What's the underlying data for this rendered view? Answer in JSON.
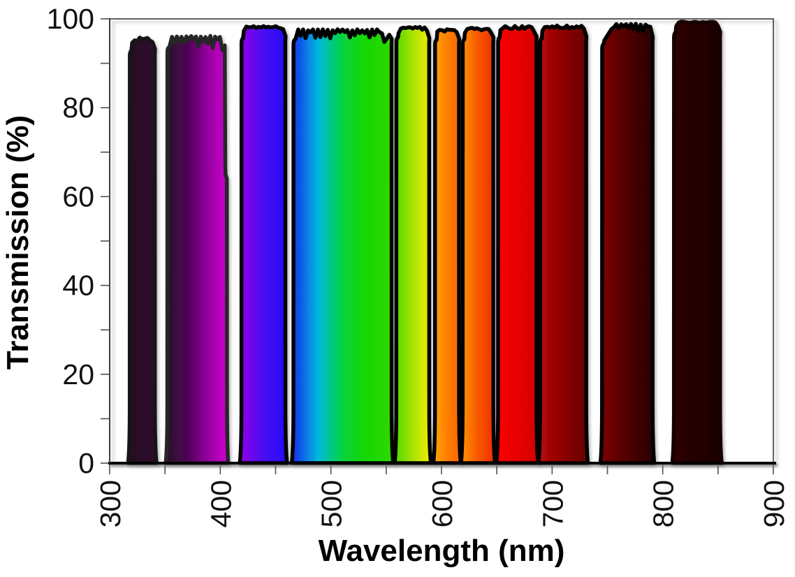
{
  "figure": {
    "background": "#ffffff",
    "description": "Transmission spectra of a set of optical bandpass filters spanning the UV-visible-NIR range, each passband filled with its spectral color"
  },
  "chart_data": {
    "type": "area",
    "title": "",
    "xlabel": "Wavelength (nm)",
    "ylabel": "Transmission (%)",
    "xlim": [
      300,
      900
    ],
    "ylim": [
      0,
      100
    ],
    "x_tick_labels": [
      "300",
      "400",
      "500",
      "600",
      "700",
      "800",
      "900"
    ],
    "x_minor_step_nm": 50,
    "y_tick_labels": [
      "0",
      "20",
      "40",
      "60",
      "80",
      "100"
    ],
    "y_minor_step_pct": 10,
    "grid": false,
    "legend": false,
    "x_tick_label_rotation_deg": -90,
    "axis_color": "#3f3f3f",
    "tick_color": "#595959",
    "series": [
      {
        "id": "band-1",
        "passband_nm": [
          318,
          341
        ],
        "peak_transmission_pct": 95.8,
        "fill": [
          "#26091f",
          "#2b0b28",
          "#2e0c2c"
        ],
        "stroke": "#141414",
        "noise": 0.9,
        "jagged": false
      },
      {
        "id": "band-2",
        "passband_nm": [
          352,
          404
        ],
        "peak_transmission_pct": 96.2,
        "fill": [
          "#2b092b",
          "#4b0652",
          "#8e0698",
          "#c703cb"
        ],
        "stroke": "#282828",
        "noise": 1.5,
        "jagged": true,
        "right_step_pct": 65
      },
      {
        "id": "band-3",
        "passband_nm": [
          419,
          459
        ],
        "peak_transmission_pct": 98.4,
        "fill": [
          "#8e06e7",
          "#4a07f2",
          "#2307f7"
        ],
        "stroke": "#000000",
        "noise": 0.5,
        "jagged": false
      },
      {
        "id": "band-4",
        "passband_nm": [
          466,
          555
        ],
        "peak_transmission_pct": 97.7,
        "fill": [
          "#1532ee",
          "#01b8de",
          "#06d33e",
          "#16d800",
          "#2fd800"
        ],
        "stroke": "#000000",
        "noise": 1.25,
        "jagged": true,
        "dip": {
          "nm": 549,
          "pct": 94.2,
          "half_width_nm": 4
        }
      },
      {
        "id": "band-5",
        "passband_nm": [
          559,
          589
        ],
        "peak_transmission_pct": 98.2,
        "fill": [
          "#55d800",
          "#a9e300",
          "#ecec00"
        ],
        "stroke": "#000000",
        "noise": 0.7,
        "jagged": false
      },
      {
        "id": "band-6",
        "passband_nm": [
          594,
          616
        ],
        "peak_transmission_pct": 97.7,
        "fill": [
          "#ffa408",
          "#ff7e02",
          "#ff6a00"
        ],
        "stroke": "#000000",
        "noise": 0.6,
        "jagged": false
      },
      {
        "id": "band-7",
        "passband_nm": [
          619,
          647
        ],
        "peak_transmission_pct": 98.0,
        "fill": [
          "#fd9007",
          "#f95803",
          "#ef3000"
        ],
        "stroke": "#000000",
        "noise": 0.6,
        "jagged": false
      },
      {
        "id": "band-8",
        "passband_nm": [
          651,
          686
        ],
        "peak_transmission_pct": 98.4,
        "fill": [
          "#fa0600",
          "#e80300",
          "#d40100"
        ],
        "stroke": "#000000",
        "noise": 0.7,
        "jagged": false
      },
      {
        "id": "band-9",
        "passband_nm": [
          689,
          731
        ],
        "peak_transmission_pct": 98.5,
        "fill": [
          "#b20808",
          "#8e0303",
          "#680000"
        ],
        "stroke": "#000000",
        "noise": 0.7,
        "jagged": false
      },
      {
        "id": "band-10",
        "passband_nm": [
          745,
          791
        ],
        "peak_transmission_pct": 99.0,
        "fill": [
          "#7c0404",
          "#4f0101",
          "#2a0000"
        ],
        "stroke": "#000000",
        "noise": 1.3,
        "jagged": true,
        "left_ramp": {
          "from_pct": 94.3,
          "to_nm": 757
        }
      },
      {
        "id": "band-11",
        "passband_nm": [
          810,
          852
        ],
        "peak_transmission_pct": 99.4,
        "fill": [
          "#2f0505",
          "#230303",
          "#1c0202"
        ],
        "stroke": "#170101",
        "noise": 0.35,
        "jagged": false
      }
    ]
  }
}
